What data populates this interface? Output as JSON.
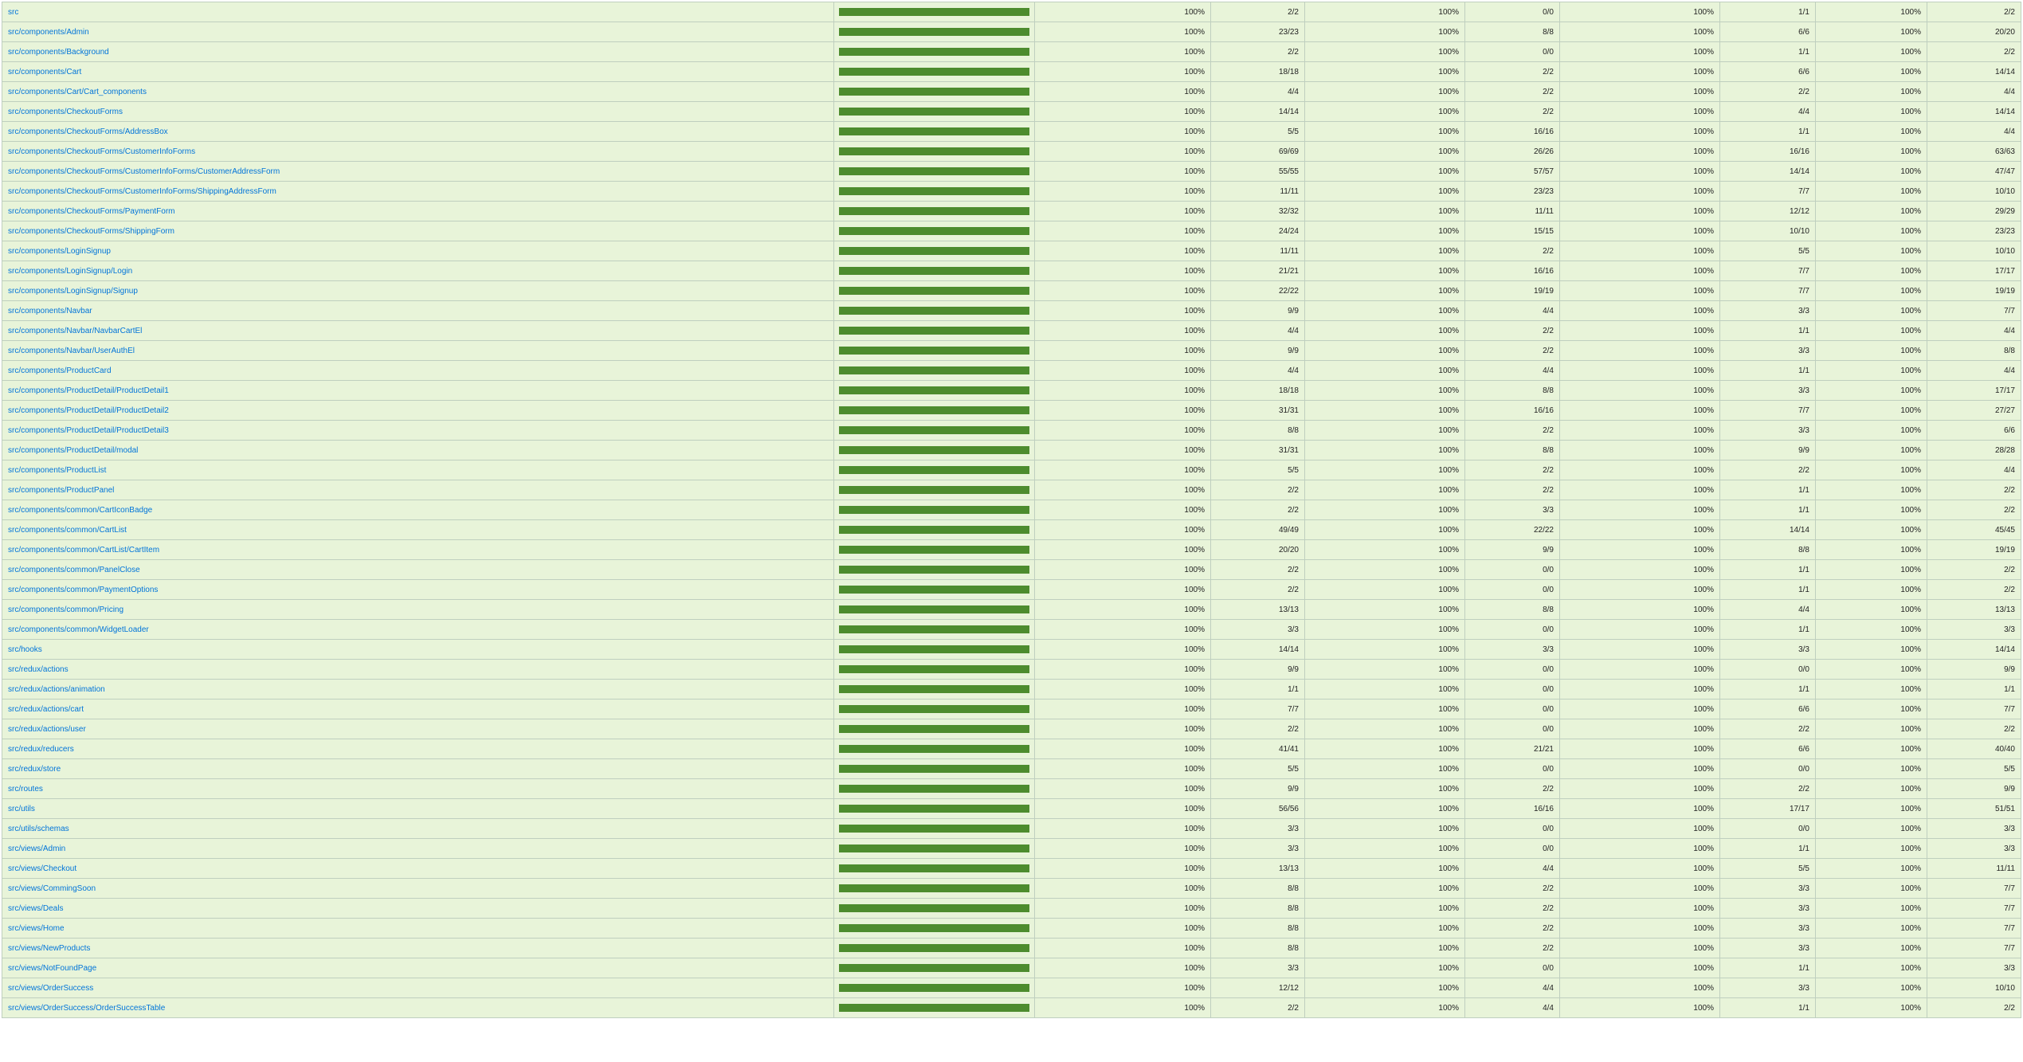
{
  "colors": {
    "row_high_background": "#e8f4d9",
    "bar_covered": "#4d8c2e",
    "link": "#0074d9",
    "border": "#bfcfbf"
  },
  "rows": [
    {
      "file": "src",
      "pct": 1.0,
      "statements_pct": "100%",
      "statements": "2/2",
      "branches_pct": "100%",
      "branches": "0/0",
      "functions_pct": "100%",
      "functions": "1/1",
      "lines_pct": "100%",
      "lines": "2/2"
    },
    {
      "file": "src/components/Admin",
      "pct": 1.0,
      "statements_pct": "100%",
      "statements": "23/23",
      "branches_pct": "100%",
      "branches": "8/8",
      "functions_pct": "100%",
      "functions": "6/6",
      "lines_pct": "100%",
      "lines": "20/20"
    },
    {
      "file": "src/components/Background",
      "pct": 1.0,
      "statements_pct": "100%",
      "statements": "2/2",
      "branches_pct": "100%",
      "branches": "0/0",
      "functions_pct": "100%",
      "functions": "1/1",
      "lines_pct": "100%",
      "lines": "2/2"
    },
    {
      "file": "src/components/Cart",
      "pct": 1.0,
      "statements_pct": "100%",
      "statements": "18/18",
      "branches_pct": "100%",
      "branches": "2/2",
      "functions_pct": "100%",
      "functions": "6/6",
      "lines_pct": "100%",
      "lines": "14/14"
    },
    {
      "file": "src/components/Cart/Cart_components",
      "pct": 1.0,
      "statements_pct": "100%",
      "statements": "4/4",
      "branches_pct": "100%",
      "branches": "2/2",
      "functions_pct": "100%",
      "functions": "2/2",
      "lines_pct": "100%",
      "lines": "4/4"
    },
    {
      "file": "src/components/CheckoutForms",
      "pct": 1.0,
      "statements_pct": "100%",
      "statements": "14/14",
      "branches_pct": "100%",
      "branches": "2/2",
      "functions_pct": "100%",
      "functions": "4/4",
      "lines_pct": "100%",
      "lines": "14/14"
    },
    {
      "file": "src/components/CheckoutForms/AddressBox",
      "pct": 1.0,
      "statements_pct": "100%",
      "statements": "5/5",
      "branches_pct": "100%",
      "branches": "16/16",
      "functions_pct": "100%",
      "functions": "1/1",
      "lines_pct": "100%",
      "lines": "4/4"
    },
    {
      "file": "src/components/CheckoutForms/CustomerInfoForms",
      "pct": 1.0,
      "statements_pct": "100%",
      "statements": "69/69",
      "branches_pct": "100%",
      "branches": "26/26",
      "functions_pct": "100%",
      "functions": "16/16",
      "lines_pct": "100%",
      "lines": "63/63"
    },
    {
      "file": "src/components/CheckoutForms/CustomerInfoForms/CustomerAddressForm",
      "pct": 1.0,
      "statements_pct": "100%",
      "statements": "55/55",
      "branches_pct": "100%",
      "branches": "57/57",
      "functions_pct": "100%",
      "functions": "14/14",
      "lines_pct": "100%",
      "lines": "47/47"
    },
    {
      "file": "src/components/CheckoutForms/CustomerInfoForms/ShippingAddressForm",
      "pct": 1.0,
      "statements_pct": "100%",
      "statements": "11/11",
      "branches_pct": "100%",
      "branches": "23/23",
      "functions_pct": "100%",
      "functions": "7/7",
      "lines_pct": "100%",
      "lines": "10/10"
    },
    {
      "file": "src/components/CheckoutForms/PaymentForm",
      "pct": 1.0,
      "statements_pct": "100%",
      "statements": "32/32",
      "branches_pct": "100%",
      "branches": "11/11",
      "functions_pct": "100%",
      "functions": "12/12",
      "lines_pct": "100%",
      "lines": "29/29"
    },
    {
      "file": "src/components/CheckoutForms/ShippingForm",
      "pct": 1.0,
      "statements_pct": "100%",
      "statements": "24/24",
      "branches_pct": "100%",
      "branches": "15/15",
      "functions_pct": "100%",
      "functions": "10/10",
      "lines_pct": "100%",
      "lines": "23/23"
    },
    {
      "file": "src/components/LoginSignup",
      "pct": 1.0,
      "statements_pct": "100%",
      "statements": "11/11",
      "branches_pct": "100%",
      "branches": "2/2",
      "functions_pct": "100%",
      "functions": "5/5",
      "lines_pct": "100%",
      "lines": "10/10"
    },
    {
      "file": "src/components/LoginSignup/Login",
      "pct": 1.0,
      "statements_pct": "100%",
      "statements": "21/21",
      "branches_pct": "100%",
      "branches": "16/16",
      "functions_pct": "100%",
      "functions": "7/7",
      "lines_pct": "100%",
      "lines": "17/17"
    },
    {
      "file": "src/components/LoginSignup/Signup",
      "pct": 1.0,
      "statements_pct": "100%",
      "statements": "22/22",
      "branches_pct": "100%",
      "branches": "19/19",
      "functions_pct": "100%",
      "functions": "7/7",
      "lines_pct": "100%",
      "lines": "19/19"
    },
    {
      "file": "src/components/Navbar",
      "pct": 1.0,
      "statements_pct": "100%",
      "statements": "9/9",
      "branches_pct": "100%",
      "branches": "4/4",
      "functions_pct": "100%",
      "functions": "3/3",
      "lines_pct": "100%",
      "lines": "7/7"
    },
    {
      "file": "src/components/Navbar/NavbarCartEl",
      "pct": 1.0,
      "statements_pct": "100%",
      "statements": "4/4",
      "branches_pct": "100%",
      "branches": "2/2",
      "functions_pct": "100%",
      "functions": "1/1",
      "lines_pct": "100%",
      "lines": "4/4"
    },
    {
      "file": "src/components/Navbar/UserAuthEl",
      "pct": 1.0,
      "statements_pct": "100%",
      "statements": "9/9",
      "branches_pct": "100%",
      "branches": "2/2",
      "functions_pct": "100%",
      "functions": "3/3",
      "lines_pct": "100%",
      "lines": "8/8"
    },
    {
      "file": "src/components/ProductCard",
      "pct": 1.0,
      "statements_pct": "100%",
      "statements": "4/4",
      "branches_pct": "100%",
      "branches": "4/4",
      "functions_pct": "100%",
      "functions": "1/1",
      "lines_pct": "100%",
      "lines": "4/4"
    },
    {
      "file": "src/components/ProductDetail/ProductDetail1",
      "pct": 1.0,
      "statements_pct": "100%",
      "statements": "18/18",
      "branches_pct": "100%",
      "branches": "8/8",
      "functions_pct": "100%",
      "functions": "3/3",
      "lines_pct": "100%",
      "lines": "17/17"
    },
    {
      "file": "src/components/ProductDetail/ProductDetail2",
      "pct": 1.0,
      "statements_pct": "100%",
      "statements": "31/31",
      "branches_pct": "100%",
      "branches": "16/16",
      "functions_pct": "100%",
      "functions": "7/7",
      "lines_pct": "100%",
      "lines": "27/27"
    },
    {
      "file": "src/components/ProductDetail/ProductDetail3",
      "pct": 1.0,
      "statements_pct": "100%",
      "statements": "8/8",
      "branches_pct": "100%",
      "branches": "2/2",
      "functions_pct": "100%",
      "functions": "3/3",
      "lines_pct": "100%",
      "lines": "6/6"
    },
    {
      "file": "src/components/ProductDetail/modal",
      "pct": 1.0,
      "statements_pct": "100%",
      "statements": "31/31",
      "branches_pct": "100%",
      "branches": "8/8",
      "functions_pct": "100%",
      "functions": "9/9",
      "lines_pct": "100%",
      "lines": "28/28"
    },
    {
      "file": "src/components/ProductList",
      "pct": 1.0,
      "statements_pct": "100%",
      "statements": "5/5",
      "branches_pct": "100%",
      "branches": "2/2",
      "functions_pct": "100%",
      "functions": "2/2",
      "lines_pct": "100%",
      "lines": "4/4"
    },
    {
      "file": "src/components/ProductPanel",
      "pct": 1.0,
      "statements_pct": "100%",
      "statements": "2/2",
      "branches_pct": "100%",
      "branches": "2/2",
      "functions_pct": "100%",
      "functions": "1/1",
      "lines_pct": "100%",
      "lines": "2/2"
    },
    {
      "file": "src/components/common/CartIconBadge",
      "pct": 1.0,
      "statements_pct": "100%",
      "statements": "2/2",
      "branches_pct": "100%",
      "branches": "3/3",
      "functions_pct": "100%",
      "functions": "1/1",
      "lines_pct": "100%",
      "lines": "2/2"
    },
    {
      "file": "src/components/common/CartList",
      "pct": 1.0,
      "statements_pct": "100%",
      "statements": "49/49",
      "branches_pct": "100%",
      "branches": "22/22",
      "functions_pct": "100%",
      "functions": "14/14",
      "lines_pct": "100%",
      "lines": "45/45"
    },
    {
      "file": "src/components/common/CartList/CartItem",
      "pct": 1.0,
      "statements_pct": "100%",
      "statements": "20/20",
      "branches_pct": "100%",
      "branches": "9/9",
      "functions_pct": "100%",
      "functions": "8/8",
      "lines_pct": "100%",
      "lines": "19/19"
    },
    {
      "file": "src/components/common/PanelClose",
      "pct": 1.0,
      "statements_pct": "100%",
      "statements": "2/2",
      "branches_pct": "100%",
      "branches": "0/0",
      "functions_pct": "100%",
      "functions": "1/1",
      "lines_pct": "100%",
      "lines": "2/2"
    },
    {
      "file": "src/components/common/PaymentOptions",
      "pct": 1.0,
      "statements_pct": "100%",
      "statements": "2/2",
      "branches_pct": "100%",
      "branches": "0/0",
      "functions_pct": "100%",
      "functions": "1/1",
      "lines_pct": "100%",
      "lines": "2/2"
    },
    {
      "file": "src/components/common/Pricing",
      "pct": 1.0,
      "statements_pct": "100%",
      "statements": "13/13",
      "branches_pct": "100%",
      "branches": "8/8",
      "functions_pct": "100%",
      "functions": "4/4",
      "lines_pct": "100%",
      "lines": "13/13"
    },
    {
      "file": "src/components/common/WidgetLoader",
      "pct": 1.0,
      "statements_pct": "100%",
      "statements": "3/3",
      "branches_pct": "100%",
      "branches": "0/0",
      "functions_pct": "100%",
      "functions": "1/1",
      "lines_pct": "100%",
      "lines": "3/3"
    },
    {
      "file": "src/hooks",
      "pct": 1.0,
      "statements_pct": "100%",
      "statements": "14/14",
      "branches_pct": "100%",
      "branches": "3/3",
      "functions_pct": "100%",
      "functions": "3/3",
      "lines_pct": "100%",
      "lines": "14/14"
    },
    {
      "file": "src/redux/actions",
      "pct": 1.0,
      "statements_pct": "100%",
      "statements": "9/9",
      "branches_pct": "100%",
      "branches": "0/0",
      "functions_pct": "100%",
      "functions": "0/0",
      "lines_pct": "100%",
      "lines": "9/9"
    },
    {
      "file": "src/redux/actions/animation",
      "pct": 1.0,
      "statements_pct": "100%",
      "statements": "1/1",
      "branches_pct": "100%",
      "branches": "0/0",
      "functions_pct": "100%",
      "functions": "1/1",
      "lines_pct": "100%",
      "lines": "1/1"
    },
    {
      "file": "src/redux/actions/cart",
      "pct": 1.0,
      "statements_pct": "100%",
      "statements": "7/7",
      "branches_pct": "100%",
      "branches": "0/0",
      "functions_pct": "100%",
      "functions": "6/6",
      "lines_pct": "100%",
      "lines": "7/7"
    },
    {
      "file": "src/redux/actions/user",
      "pct": 1.0,
      "statements_pct": "100%",
      "statements": "2/2",
      "branches_pct": "100%",
      "branches": "0/0",
      "functions_pct": "100%",
      "functions": "2/2",
      "lines_pct": "100%",
      "lines": "2/2"
    },
    {
      "file": "src/redux/reducers",
      "pct": 1.0,
      "statements_pct": "100%",
      "statements": "41/41",
      "branches_pct": "100%",
      "branches": "21/21",
      "functions_pct": "100%",
      "functions": "6/6",
      "lines_pct": "100%",
      "lines": "40/40"
    },
    {
      "file": "src/redux/store",
      "pct": 1.0,
      "statements_pct": "100%",
      "statements": "5/5",
      "branches_pct": "100%",
      "branches": "0/0",
      "functions_pct": "100%",
      "functions": "0/0",
      "lines_pct": "100%",
      "lines": "5/5"
    },
    {
      "file": "src/routes",
      "pct": 1.0,
      "statements_pct": "100%",
      "statements": "9/9",
      "branches_pct": "100%",
      "branches": "2/2",
      "functions_pct": "100%",
      "functions": "2/2",
      "lines_pct": "100%",
      "lines": "9/9"
    },
    {
      "file": "src/utils",
      "pct": 1.0,
      "statements_pct": "100%",
      "statements": "56/56",
      "branches_pct": "100%",
      "branches": "16/16",
      "functions_pct": "100%",
      "functions": "17/17",
      "lines_pct": "100%",
      "lines": "51/51"
    },
    {
      "file": "src/utils/schemas",
      "pct": 1.0,
      "statements_pct": "100%",
      "statements": "3/3",
      "branches_pct": "100%",
      "branches": "0/0",
      "functions_pct": "100%",
      "functions": "0/0",
      "lines_pct": "100%",
      "lines": "3/3"
    },
    {
      "file": "src/views/Admin",
      "pct": 1.0,
      "statements_pct": "100%",
      "statements": "3/3",
      "branches_pct": "100%",
      "branches": "0/0",
      "functions_pct": "100%",
      "functions": "1/1",
      "lines_pct": "100%",
      "lines": "3/3"
    },
    {
      "file": "src/views/Checkout",
      "pct": 1.0,
      "statements_pct": "100%",
      "statements": "13/13",
      "branches_pct": "100%",
      "branches": "4/4",
      "functions_pct": "100%",
      "functions": "5/5",
      "lines_pct": "100%",
      "lines": "11/11"
    },
    {
      "file": "src/views/CommingSoon",
      "pct": 1.0,
      "statements_pct": "100%",
      "statements": "8/8",
      "branches_pct": "100%",
      "branches": "2/2",
      "functions_pct": "100%",
      "functions": "3/3",
      "lines_pct": "100%",
      "lines": "7/7"
    },
    {
      "file": "src/views/Deals",
      "pct": 1.0,
      "statements_pct": "100%",
      "statements": "8/8",
      "branches_pct": "100%",
      "branches": "2/2",
      "functions_pct": "100%",
      "functions": "3/3",
      "lines_pct": "100%",
      "lines": "7/7"
    },
    {
      "file": "src/views/Home",
      "pct": 1.0,
      "statements_pct": "100%",
      "statements": "8/8",
      "branches_pct": "100%",
      "branches": "2/2",
      "functions_pct": "100%",
      "functions": "3/3",
      "lines_pct": "100%",
      "lines": "7/7"
    },
    {
      "file": "src/views/NewProducts",
      "pct": 1.0,
      "statements_pct": "100%",
      "statements": "8/8",
      "branches_pct": "100%",
      "branches": "2/2",
      "functions_pct": "100%",
      "functions": "3/3",
      "lines_pct": "100%",
      "lines": "7/7"
    },
    {
      "file": "src/views/NotFoundPage",
      "pct": 1.0,
      "statements_pct": "100%",
      "statements": "3/3",
      "branches_pct": "100%",
      "branches": "0/0",
      "functions_pct": "100%",
      "functions": "1/1",
      "lines_pct": "100%",
      "lines": "3/3"
    },
    {
      "file": "src/views/OrderSuccess",
      "pct": 1.0,
      "statements_pct": "100%",
      "statements": "12/12",
      "branches_pct": "100%",
      "branches": "4/4",
      "functions_pct": "100%",
      "functions": "3/3",
      "lines_pct": "100%",
      "lines": "10/10"
    },
    {
      "file": "src/views/OrderSuccess/OrderSuccessTable",
      "pct": 1.0,
      "statements_pct": "100%",
      "statements": "2/2",
      "branches_pct": "100%",
      "branches": "4/4",
      "functions_pct": "100%",
      "functions": "1/1",
      "lines_pct": "100%",
      "lines": "2/2"
    }
  ]
}
